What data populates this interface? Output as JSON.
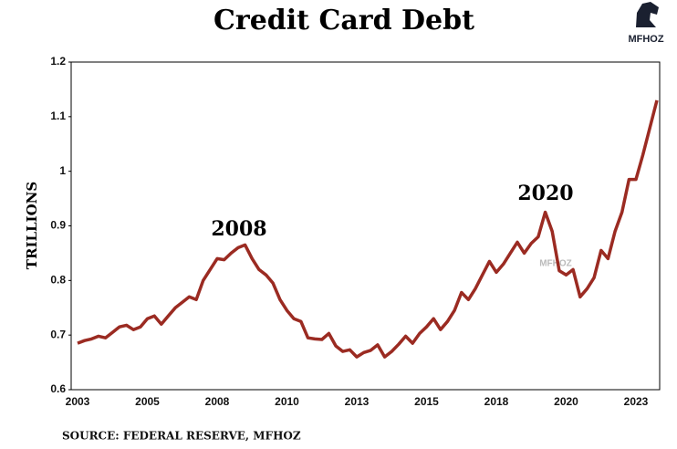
{
  "chart_data": {
    "type": "line",
    "title": "Credit Card Debt",
    "y_label": "TRILLIONS",
    "source": "SOURCE: FEDERAL RESERVE, MFHOZ",
    "logo": "MFHOZ",
    "watermark": "MFHOZ",
    "annotations": [
      "2008",
      "2020"
    ],
    "categories": [
      "2003",
      null,
      null,
      null,
      null,
      null,
      null,
      null,
      null,
      null,
      "2005",
      null,
      null,
      null,
      null,
      null,
      null,
      null,
      null,
      null,
      "2008",
      null,
      null,
      null,
      null,
      null,
      null,
      null,
      null,
      null,
      "2010",
      null,
      null,
      null,
      null,
      null,
      null,
      null,
      null,
      null,
      "2013",
      null,
      null,
      null,
      null,
      null,
      null,
      null,
      null,
      null,
      "2015",
      null,
      null,
      null,
      null,
      null,
      null,
      null,
      null,
      null,
      "2018",
      null,
      null,
      null,
      null,
      null,
      null,
      null,
      null,
      null,
      "2020",
      null,
      null,
      null,
      null,
      null,
      null,
      null,
      null,
      null,
      "2023",
      null,
      null,
      null
    ],
    "series": [
      {
        "color": "#9b2b22",
        "values": [
          0.685,
          0.69,
          0.693,
          0.698,
          0.695,
          0.705,
          0.715,
          0.718,
          0.71,
          0.715,
          0.73,
          0.735,
          0.72,
          0.735,
          0.75,
          0.76,
          0.77,
          0.765,
          0.8,
          0.82,
          0.84,
          0.838,
          0.85,
          0.86,
          0.865,
          0.84,
          0.82,
          0.81,
          0.795,
          0.765,
          0.745,
          0.73,
          0.725,
          0.695,
          0.693,
          0.692,
          0.703,
          0.68,
          0.67,
          0.673,
          0.66,
          0.668,
          0.672,
          0.682,
          0.66,
          0.67,
          0.683,
          0.698,
          0.685,
          0.703,
          0.715,
          0.73,
          0.71,
          0.725,
          0.745,
          0.778,
          0.765,
          0.785,
          0.81,
          0.835,
          0.815,
          0.83,
          0.85,
          0.87,
          0.85,
          0.868,
          0.88,
          0.925,
          0.89,
          0.818,
          0.81,
          0.82,
          0.77,
          0.785,
          0.805,
          0.855,
          0.84,
          0.89,
          0.925,
          0.985,
          0.985,
          1.03,
          1.08,
          1.13
        ]
      }
    ],
    "ylim": [
      0.6,
      1.2
    ],
    "yticks": [
      0.6,
      0.7,
      0.8,
      0.9,
      1,
      1.1,
      1.2
    ]
  }
}
